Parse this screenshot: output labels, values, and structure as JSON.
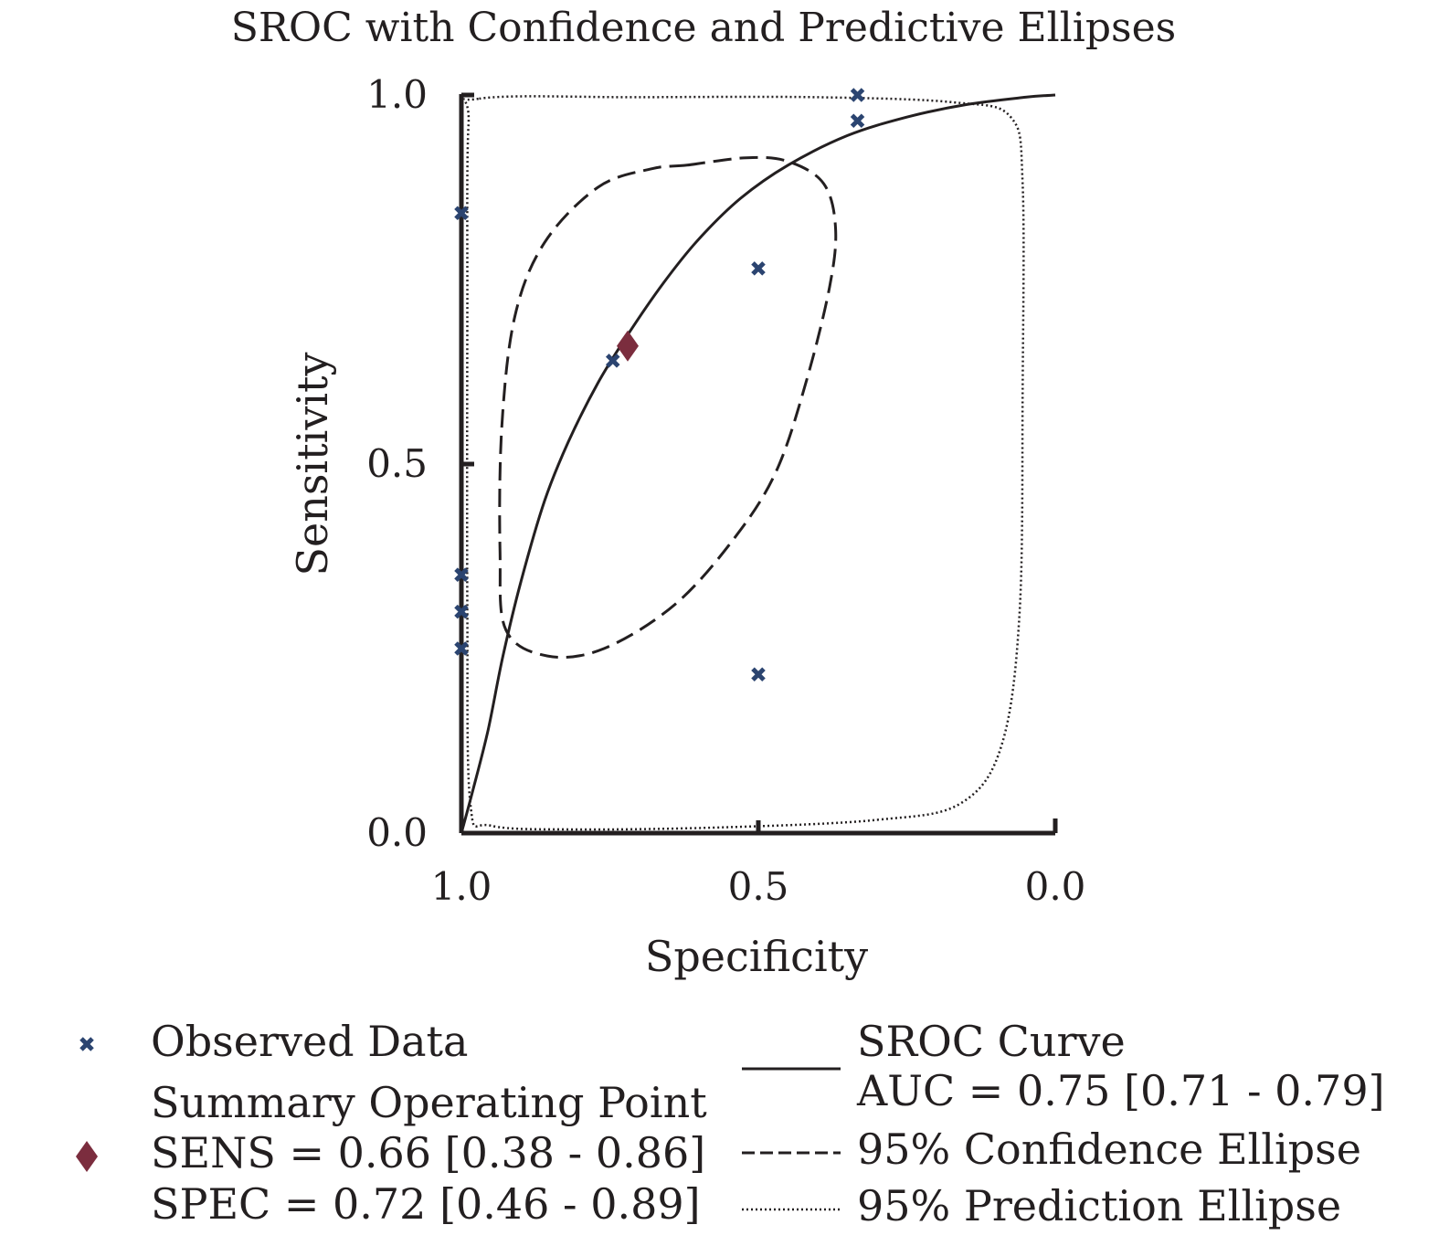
{
  "chart_data": {
    "type": "scatter",
    "title": "SROC with Confidence and Predictive Ellipses",
    "xlabel": "Specificity",
    "ylabel": "Sensitivity",
    "x_reversed": true,
    "xlim": [
      1.0,
      0.0
    ],
    "ylim": [
      0.0,
      1.0
    ],
    "x_ticks": [
      "1.0",
      "0.5",
      "0.0"
    ],
    "y_ticks": [
      "0.0",
      "0.5",
      "1.0"
    ],
    "grid": false,
    "legend_position": "bottom",
    "colors": {
      "observed": "#2b4470",
      "summary": "#7b2d3e",
      "lines": "#231f20"
    },
    "observed_data": {
      "name": "Observed Data",
      "points": [
        {
          "spec": 1.0,
          "sens": 0.84
        },
        {
          "spec": 1.0,
          "sens": 0.35
        },
        {
          "spec": 1.0,
          "sens": 0.3
        },
        {
          "spec": 1.0,
          "sens": 0.25
        },
        {
          "spec": 0.745,
          "sens": 0.64
        },
        {
          "spec": 0.5,
          "sens": 0.765
        },
        {
          "spec": 0.5,
          "sens": 0.215
        },
        {
          "spec": 0.333,
          "sens": 1.0
        },
        {
          "spec": 0.333,
          "sens": 0.965
        }
      ]
    },
    "summary_point": {
      "label": "Summary Operating Point",
      "sens_text": "SENS = 0.66 [0.38 - 0.86]",
      "spec_text": "SPEC = 0.72 [0.46 - 0.89]",
      "sens": 0.66,
      "spec": 0.72
    },
    "sroc_curve": {
      "name": "SROC Curve",
      "auc_text": "AUC = 0.75 [0.71 - 0.79]",
      "points": [
        {
          "spec": 1.0,
          "sens": 0.0
        },
        {
          "spec": 0.98,
          "sens": 0.06
        },
        {
          "spec": 0.955,
          "sens": 0.14
        },
        {
          "spec": 0.93,
          "sens": 0.24
        },
        {
          "spec": 0.9,
          "sens": 0.34
        },
        {
          "spec": 0.86,
          "sens": 0.45
        },
        {
          "spec": 0.82,
          "sens": 0.53
        },
        {
          "spec": 0.77,
          "sens": 0.61
        },
        {
          "spec": 0.72,
          "sens": 0.675
        },
        {
          "spec": 0.66,
          "sens": 0.745
        },
        {
          "spec": 0.6,
          "sens": 0.805
        },
        {
          "spec": 0.53,
          "sens": 0.86
        },
        {
          "spec": 0.45,
          "sens": 0.905
        },
        {
          "spec": 0.35,
          "sens": 0.945
        },
        {
          "spec": 0.25,
          "sens": 0.97
        },
        {
          "spec": 0.15,
          "sens": 0.987
        },
        {
          "spec": 0.05,
          "sens": 0.997
        },
        {
          "spec": 0.0,
          "sens": 1.0
        }
      ]
    },
    "confidence_ellipse": {
      "name": "95% Confidence Ellipse",
      "points": [
        {
          "spec": 0.62,
          "sens": 0.905
        },
        {
          "spec": 0.52,
          "sens": 0.915
        },
        {
          "spec": 0.45,
          "sens": 0.91
        },
        {
          "spec": 0.39,
          "sens": 0.88
        },
        {
          "spec": 0.37,
          "sens": 0.82
        },
        {
          "spec": 0.38,
          "sens": 0.74
        },
        {
          "spec": 0.42,
          "sens": 0.61
        },
        {
          "spec": 0.47,
          "sens": 0.49
        },
        {
          "spec": 0.54,
          "sens": 0.4
        },
        {
          "spec": 0.64,
          "sens": 0.31
        },
        {
          "spec": 0.76,
          "sens": 0.25
        },
        {
          "spec": 0.855,
          "sens": 0.24
        },
        {
          "spec": 0.925,
          "sens": 0.275
        },
        {
          "spec": 0.935,
          "sens": 0.38
        },
        {
          "spec": 0.932,
          "sens": 0.55
        },
        {
          "spec": 0.91,
          "sens": 0.7
        },
        {
          "spec": 0.86,
          "sens": 0.8
        },
        {
          "spec": 0.77,
          "sens": 0.875
        },
        {
          "spec": 0.68,
          "sens": 0.9
        }
      ]
    },
    "prediction_ellipse": {
      "name": "95% Prediction Ellipse",
      "points": [
        {
          "spec": 0.97,
          "sens": 0.995
        },
        {
          "spec": 0.7,
          "sens": 0.997
        },
        {
          "spec": 0.4,
          "sens": 0.997
        },
        {
          "spec": 0.17,
          "sens": 0.99
        },
        {
          "spec": 0.075,
          "sens": 0.97
        },
        {
          "spec": 0.055,
          "sens": 0.88
        },
        {
          "spec": 0.055,
          "sens": 0.6
        },
        {
          "spec": 0.06,
          "sens": 0.3
        },
        {
          "spec": 0.09,
          "sens": 0.12
        },
        {
          "spec": 0.16,
          "sens": 0.04
        },
        {
          "spec": 0.3,
          "sens": 0.018
        },
        {
          "spec": 0.55,
          "sens": 0.008
        },
        {
          "spec": 0.8,
          "sens": 0.005
        },
        {
          "spec": 0.95,
          "sens": 0.01
        },
        {
          "spec": 0.985,
          "sens": 0.04
        },
        {
          "spec": 0.99,
          "sens": 0.3
        },
        {
          "spec": 0.99,
          "sens": 0.7
        },
        {
          "spec": 0.988,
          "sens": 0.96
        }
      ]
    }
  }
}
